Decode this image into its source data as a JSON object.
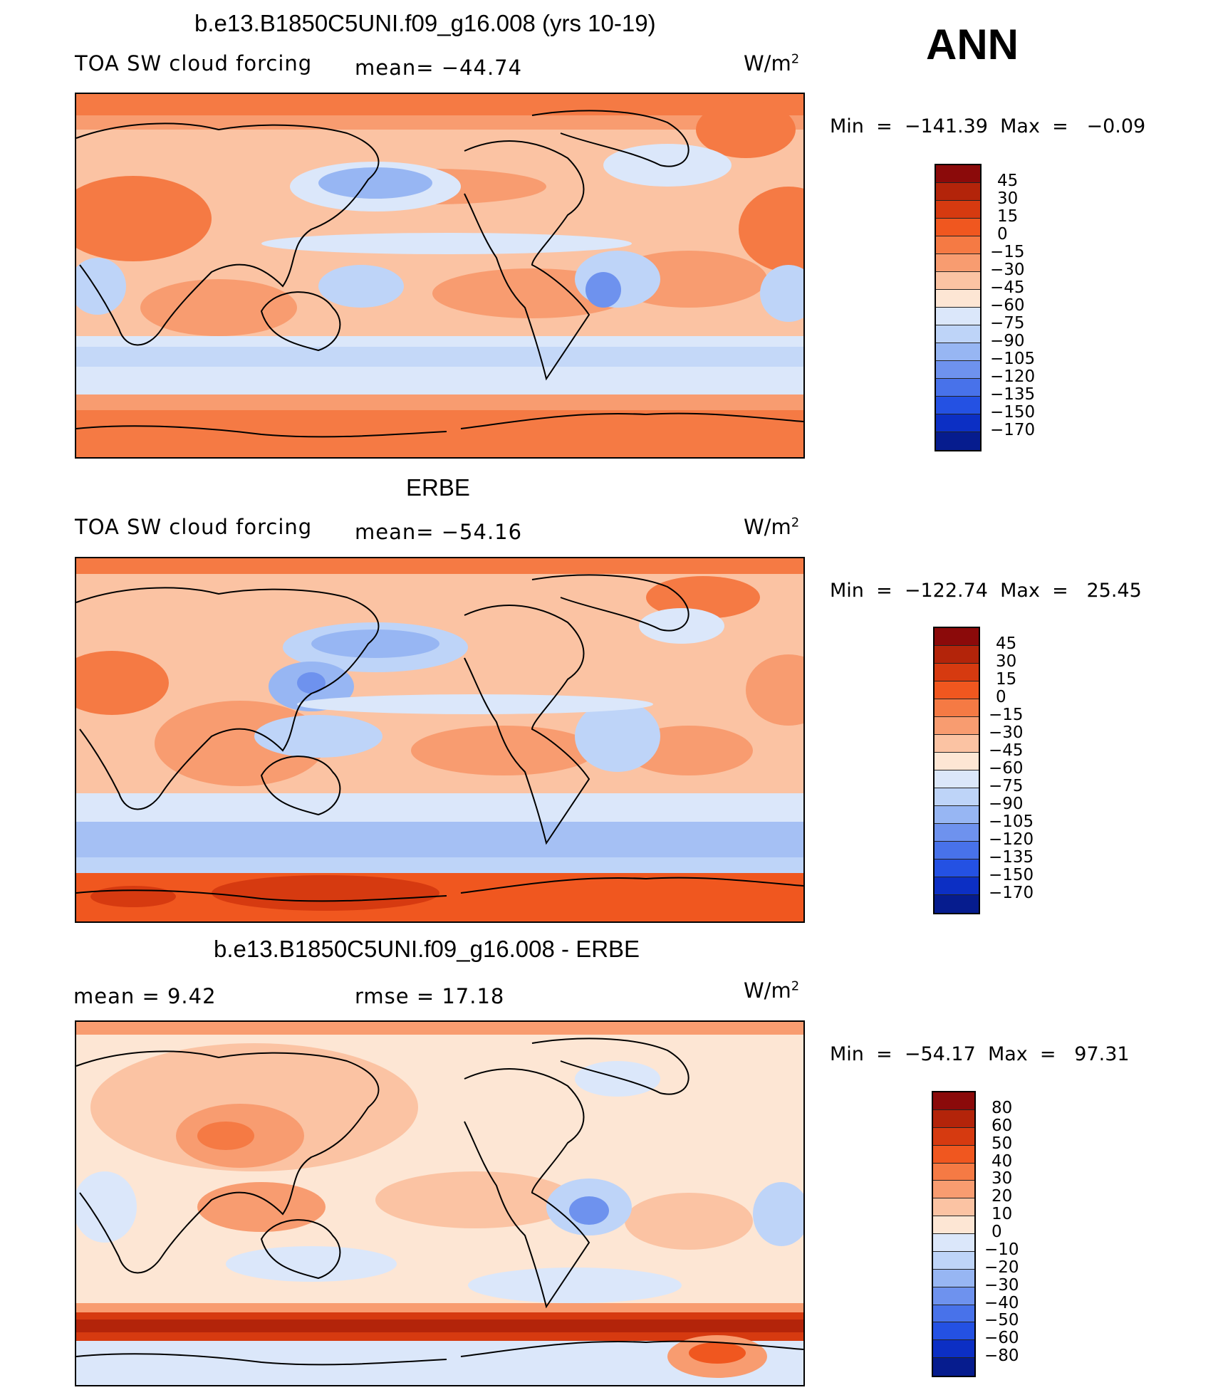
{
  "season": "ANN",
  "panels": [
    {
      "title": "b.e13.B1850C5UNI.f09_g16.008 (yrs 10-19)",
      "left_label": "TOA SW cloud forcing",
      "stat_label": "mean= −44.74",
      "units": "W/m",
      "units_sup": "2",
      "minmax": "Min  =  −141.39  Max  =   −0.09"
    },
    {
      "title": "ERBE",
      "left_label": "TOA SW cloud forcing",
      "stat_label": "mean= −54.16",
      "units": "W/m",
      "units_sup": "2",
      "minmax": "Min  =  −122.74  Max  =   25.45"
    },
    {
      "title": "b.e13.B1850C5UNI.f09_g16.008 - ERBE",
      "left_label": "mean  =    9.42",
      "stat_label": "rmse  =   17.18",
      "units": "W/m",
      "units_sup": "2",
      "minmax": "Min  =  −54.17  Max  =   97.31"
    }
  ],
  "colorbars": [
    {
      "labels": [
        "45",
        "30",
        "15",
        "0",
        "−15",
        "−30",
        "−45",
        "−60",
        "−75",
        "−90",
        "−105",
        "−120",
        "−135",
        "−150",
        "−170"
      ],
      "colors": [
        "#8b0a0a",
        "#b3240a",
        "#d63a10",
        "#f0571f",
        "#f57a44",
        "#f89c70",
        "#fbc3a3",
        "#fde6d4",
        "#dbe7fa",
        "#bed4f8",
        "#97b6f3",
        "#6e92ee",
        "#4872ea",
        "#2451e3",
        "#0c2fc4",
        "#061c8e"
      ]
    },
    {
      "labels": [
        "45",
        "30",
        "15",
        "0",
        "−15",
        "−30",
        "−45",
        "−60",
        "−75",
        "−90",
        "−105",
        "−120",
        "−135",
        "−150",
        "−170"
      ],
      "colors": [
        "#8b0a0a",
        "#b3240a",
        "#d63a10",
        "#f0571f",
        "#f57a44",
        "#f89c70",
        "#fbc3a3",
        "#fde6d4",
        "#dbe7fa",
        "#bed4f8",
        "#97b6f3",
        "#6e92ee",
        "#4872ea",
        "#2451e3",
        "#0c2fc4",
        "#061c8e"
      ]
    },
    {
      "labels": [
        "80",
        "60",
        "50",
        "40",
        "30",
        "20",
        "10",
        "0",
        "−10",
        "−20",
        "−30",
        "−40",
        "−50",
        "−60",
        "−80"
      ],
      "colors": [
        "#8b0a0a",
        "#b3240a",
        "#d63a10",
        "#f0571f",
        "#f57a44",
        "#f89c70",
        "#fbc3a3",
        "#fde6d4",
        "#dbe7fa",
        "#bed4f8",
        "#97b6f3",
        "#6e92ee",
        "#4872ea",
        "#2451e3",
        "#0c2fc4",
        "#061c8e"
      ]
    }
  ]
}
